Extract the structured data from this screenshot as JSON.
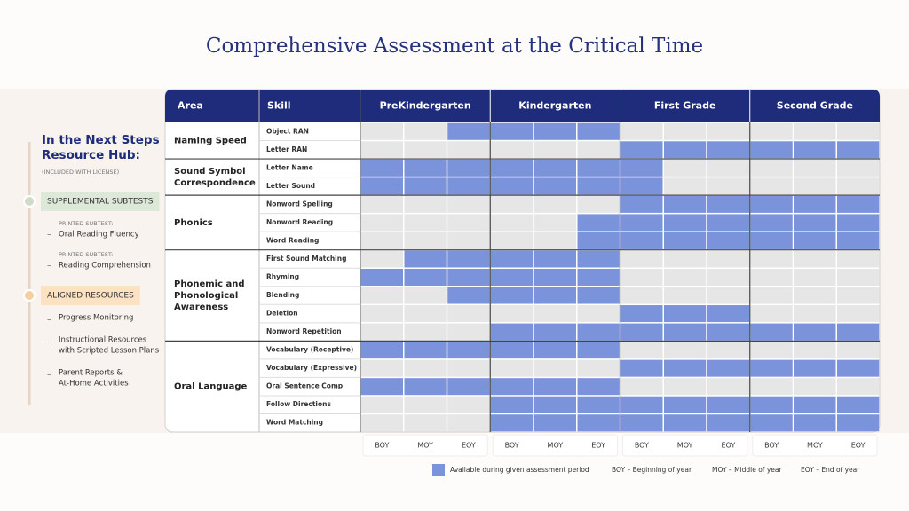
{
  "title": "Comprehensive Assessment at the Critical Time",
  "sidebar": {
    "title_lines": [
      "In the Next Steps",
      "Resource Hub:"
    ],
    "note": "(INCLUDED WITH LICENSE)",
    "sections": [
      {
        "label": "SUPPLEMENTAL SUBTESTS",
        "items": [
          {
            "prefix": "PRINTED SUBTEST:",
            "lines": [
              "Oral Reading Fluency"
            ]
          },
          {
            "prefix": "PRINTED SUBTEST:",
            "lines": [
              "Reading Comprehension"
            ]
          }
        ]
      },
      {
        "label": "ALIGNED RESOURCES",
        "items": [
          {
            "lines": [
              "Progress Monitoring"
            ]
          },
          {
            "lines": [
              "Instructional Resources",
              "with Scripted Lesson Plans"
            ]
          },
          {
            "lines": [
              "Parent Reports &",
              "At-Home Activities"
            ]
          }
        ]
      }
    ]
  },
  "table": {
    "headers": {
      "area": "Area",
      "skill": "Skill",
      "grades": [
        "PreKindergarten",
        "Kindergarten",
        "First Grade",
        "Second Grade"
      ]
    },
    "periods": [
      "BOY",
      "MOY",
      "EOY"
    ],
    "groups": [
      {
        "area": [
          "Naming Speed"
        ],
        "rows": [
          {
            "skill": "Object RAN",
            "available": [
              false,
              false,
              true,
              true,
              true,
              true,
              false,
              false,
              false,
              false,
              false,
              false
            ]
          },
          {
            "skill": "Letter RAN",
            "available": [
              false,
              false,
              false,
              false,
              false,
              false,
              true,
              true,
              true,
              true,
              true,
              true
            ]
          }
        ]
      },
      {
        "area": [
          "Sound Symbol",
          "Correspondence"
        ],
        "rows": [
          {
            "skill": "Letter Name",
            "available": [
              true,
              true,
              true,
              true,
              true,
              true,
              true,
              false,
              false,
              false,
              false,
              false
            ]
          },
          {
            "skill": "Letter Sound",
            "available": [
              true,
              true,
              true,
              true,
              true,
              true,
              true,
              false,
              false,
              false,
              false,
              false
            ]
          }
        ]
      },
      {
        "area": [
          "Phonics"
        ],
        "rows": [
          {
            "skill": "Nonword Spelling",
            "available": [
              false,
              false,
              false,
              false,
              false,
              false,
              true,
              true,
              true,
              true,
              true,
              true
            ]
          },
          {
            "skill": "Nonword Reading",
            "available": [
              false,
              false,
              false,
              false,
              false,
              true,
              true,
              true,
              true,
              true,
              true,
              true
            ]
          },
          {
            "skill": "Word Reading",
            "available": [
              false,
              false,
              false,
              false,
              false,
              true,
              true,
              true,
              true,
              true,
              true,
              true
            ]
          }
        ]
      },
      {
        "area": [
          "Phonemic and",
          "Phonological",
          "Awareness"
        ],
        "rows": [
          {
            "skill": "First Sound Matching",
            "available": [
              false,
              true,
              true,
              true,
              true,
              true,
              false,
              false,
              false,
              false,
              false,
              false
            ]
          },
          {
            "skill": "Rhyming",
            "available": [
              true,
              true,
              true,
              true,
              true,
              true,
              false,
              false,
              false,
              false,
              false,
              false
            ]
          },
          {
            "skill": "Blending",
            "available": [
              false,
              false,
              true,
              true,
              true,
              true,
              false,
              false,
              false,
              false,
              false,
              false
            ]
          },
          {
            "skill": "Deletion",
            "available": [
              false,
              false,
              false,
              false,
              false,
              false,
              true,
              true,
              true,
              false,
              false,
              false
            ]
          },
          {
            "skill": "Nonword Repetition",
            "available": [
              false,
              false,
              false,
              true,
              true,
              true,
              true,
              true,
              true,
              true,
              true,
              true
            ]
          }
        ]
      },
      {
        "area": [
          "Oral Language"
        ],
        "rows": [
          {
            "skill": "Vocabulary (Receptive)",
            "available": [
              true,
              true,
              true,
              true,
              true,
              true,
              false,
              false,
              false,
              false,
              false,
              false
            ]
          },
          {
            "skill": "Vocabulary (Expressive)",
            "available": [
              false,
              false,
              false,
              false,
              false,
              false,
              true,
              true,
              true,
              true,
              true,
              true
            ]
          },
          {
            "skill": "Oral Sentence Comp",
            "available": [
              true,
              true,
              true,
              true,
              true,
              true,
              false,
              false,
              false,
              false,
              false,
              false
            ]
          },
          {
            "skill": "Follow Directions",
            "available": [
              false,
              false,
              false,
              true,
              true,
              true,
              true,
              true,
              true,
              true,
              true,
              true
            ]
          },
          {
            "skill": "Word Matching",
            "available": [
              false,
              false,
              false,
              true,
              true,
              true,
              true,
              true,
              true,
              true,
              true,
              true
            ]
          }
        ]
      }
    ]
  },
  "legend": {
    "swatch_label": "Available during given assessment period",
    "definitions": [
      "BOY – Beginning of year",
      "MOY – Middle of year",
      "EOY – End of year"
    ]
  }
}
